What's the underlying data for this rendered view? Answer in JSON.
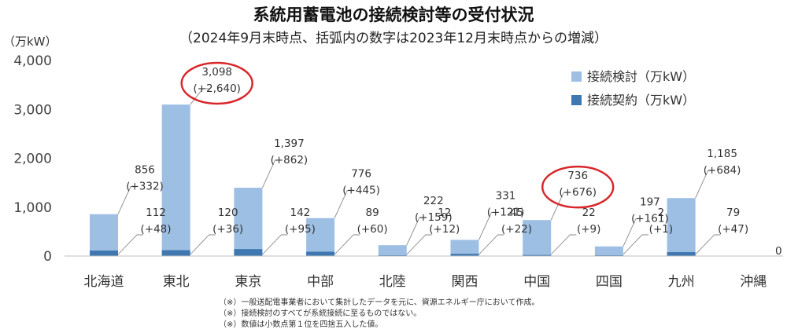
{
  "chart_data": {
    "type": "bar",
    "title": "系統用蓄電池の接続検討等の受付状況",
    "subtitle": "（2024年9月末時点、括弧内の数字は2023年12月末時点からの増減）",
    "ylabel": "（万kW）",
    "ylim": [
      0,
      4000
    ],
    "yticks": [
      "0",
      "1,000",
      "2,000",
      "3,000",
      "4,000"
    ],
    "ytick_values": [
      0,
      1000,
      2000,
      3000,
      4000
    ],
    "grid": false,
    "legend_position": "top-right",
    "categories": [
      "北海道",
      "東北",
      "東京",
      "中部",
      "北陸",
      "関西",
      "中国",
      "四国",
      "九州",
      "沖縄"
    ],
    "series": [
      {
        "name": "接続検討（万kW）",
        "color": "#9dbfe3",
        "values": [
          856,
          3098,
          1397,
          776,
          222,
          331,
          736,
          197,
          1185,
          0
        ],
        "value_labels": [
          "856",
          "3,098",
          "1,397",
          "776",
          "222",
          "331",
          "736",
          "197",
          "1,185",
          ""
        ],
        "change_labels": [
          "(+332)",
          "(+2,640)",
          "(+862)",
          "(+445)",
          "(+159)",
          "(+121)",
          "(+676)",
          "(+161)",
          "(+684)",
          ""
        ]
      },
      {
        "name": "接続契約（万kW）",
        "color": "#3f78b0",
        "values": [
          112,
          120,
          142,
          89,
          12,
          45,
          22,
          2,
          79,
          0
        ],
        "value_labels": [
          "112",
          "120",
          "142",
          "89",
          "12",
          "45",
          "22",
          "2",
          "79",
          "0"
        ],
        "change_labels": [
          "(+48)",
          "(+36)",
          "(+95)",
          "(+60)",
          "(+12)",
          "(+22)",
          "(+9)",
          "(+1)",
          "(+47)",
          ""
        ]
      }
    ],
    "highlighted_categories": [
      "東北",
      "中国"
    ],
    "highlight_color": "#d9262a"
  },
  "notes": [
    "（※）一般送配電事業者において集計したデータを元に、資源エネルギー庁において作成。",
    "（※）接続検討のすべてが系統接続に至るものではない。",
    "（※）数値は小数点第１位を四捨五入した値。"
  ]
}
